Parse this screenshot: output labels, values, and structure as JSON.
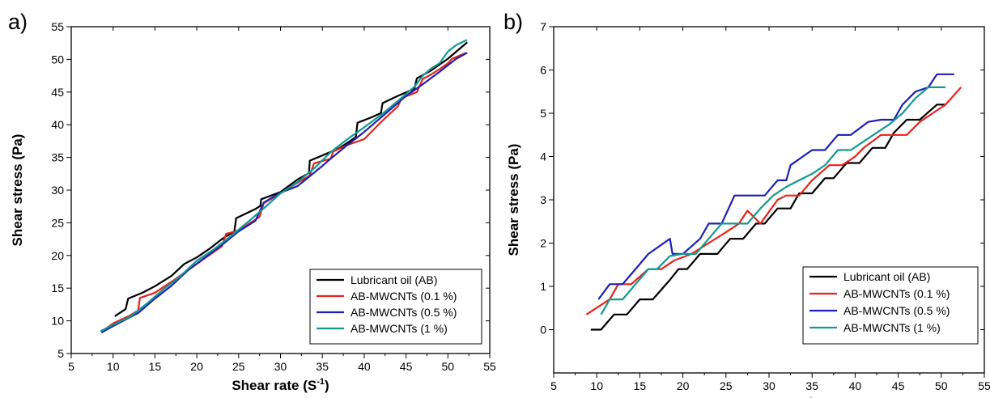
{
  "chart_data": [
    {
      "type": "line",
      "panel_label": "a)",
      "xlabel": "Shear rate",
      "xlabel_unit": "(S",
      "xlabel_unit_sup": "-1",
      "xlabel_unit_close": ")",
      "ylabel": "Shear stress (Pa)",
      "xlim": [
        5,
        55
      ],
      "ylim": [
        5,
        55
      ],
      "xticks": [
        "5",
        "10",
        "15",
        "20",
        "25",
        "30",
        "35",
        "40",
        "45",
        "50",
        "55"
      ],
      "yticks": [
        "5",
        "10",
        "15",
        "20",
        "25",
        "30",
        "35",
        "40",
        "45",
        "50",
        "55"
      ],
      "grid": false,
      "legend_position": "bottom-right",
      "series": [
        {
          "name": "Lubricant oil (AB)",
          "color": "#000000",
          "points": [
            [
              10.2,
              10.7
            ],
            [
              11.5,
              11.8
            ],
            [
              11.8,
              13.4
            ],
            [
              13.5,
              14.3
            ],
            [
              15,
              15.3
            ],
            [
              17,
              16.9
            ],
            [
              18.5,
              18.7
            ],
            [
              20,
              19.7
            ],
            [
              21.5,
              21
            ],
            [
              23,
              22.5
            ],
            [
              24.5,
              23.7
            ],
            [
              24.7,
              25.7
            ],
            [
              27,
              27.1
            ],
            [
              27.6,
              27.6
            ],
            [
              27.7,
              28.6
            ],
            [
              30,
              29.7
            ],
            [
              32,
              31.6
            ],
            [
              33.4,
              32.6
            ],
            [
              33.5,
              34.5
            ],
            [
              35,
              35.3
            ],
            [
              37,
              36.4
            ],
            [
              39,
              38.1
            ],
            [
              39.2,
              40.3
            ],
            [
              41,
              41.2
            ],
            [
              42,
              41.8
            ],
            [
              42.2,
              43.3
            ],
            [
              44,
              44.4
            ],
            [
              46,
              45.5
            ],
            [
              46.3,
              47.1
            ],
            [
              48,
              48.3
            ],
            [
              50,
              50.1
            ],
            [
              52.3,
              52.6
            ]
          ]
        },
        {
          "name": "AB-MWCNTs (0.1 %)",
          "color": "#e8221b",
          "points": [
            [
              8.7,
              8.4
            ],
            [
              10,
              9.6
            ],
            [
              12,
              10.8
            ],
            [
              13,
              11.6
            ],
            [
              13.2,
              13.5
            ],
            [
              15,
              14.3
            ],
            [
              17,
              16
            ],
            [
              19,
              17.8
            ],
            [
              21,
              19.6
            ],
            [
              23,
              21.4
            ],
            [
              23.5,
              23.3
            ],
            [
              25,
              23.8
            ],
            [
              27.5,
              25.9
            ],
            [
              28,
              28
            ],
            [
              30,
              29.5
            ],
            [
              32,
              31.1
            ],
            [
              33.5,
              32.2
            ],
            [
              34,
              34.1
            ],
            [
              36,
              34.8
            ],
            [
              36.3,
              35.9
            ],
            [
              38,
              36.9
            ],
            [
              40,
              37.8
            ],
            [
              42,
              40.4
            ],
            [
              44,
              42.8
            ],
            [
              44.5,
              44.1
            ],
            [
              46.3,
              45
            ],
            [
              47,
              47
            ],
            [
              48,
              47.7
            ],
            [
              49,
              48.5
            ],
            [
              50,
              49.4
            ],
            [
              50.5,
              50.1
            ],
            [
              52.2,
              51
            ]
          ]
        },
        {
          "name": "AB-MWCNTs (0.5 %)",
          "color": "#1f1fb4",
          "points": [
            [
              8.6,
              8.2
            ],
            [
              10,
              9.2
            ],
            [
              11.5,
              10.2
            ],
            [
              13,
              11.2
            ],
            [
              15,
              13.4
            ],
            [
              17,
              15.4
            ],
            [
              19,
              17.8
            ],
            [
              21,
              19.7
            ],
            [
              23,
              21.6
            ],
            [
              25,
              23.7
            ],
            [
              27,
              25.3
            ],
            [
              27.5,
              26.7
            ],
            [
              28,
              28.1
            ],
            [
              30,
              29.6
            ],
            [
              32,
              30.6
            ],
            [
              33,
              31.6
            ],
            [
              35,
              33.7
            ],
            [
              36,
              34.8
            ],
            [
              38,
              36.9
            ],
            [
              40,
              38.9
            ],
            [
              42,
              41.1
            ],
            [
              43,
              42.2
            ],
            [
              45,
              44.4
            ],
            [
              47,
              46.2
            ],
            [
              49,
              48.1
            ],
            [
              51,
              50.1
            ],
            [
              52.3,
              51
            ]
          ]
        },
        {
          "name": "AB-MWCNTs (1 %)",
          "color": "#119a92",
          "points": [
            [
              8.5,
              8.4
            ],
            [
              10,
              9.4
            ],
            [
              12,
              10.6
            ],
            [
              14,
              12.6
            ],
            [
              16,
              14.8
            ],
            [
              18,
              16.8
            ],
            [
              20,
              19.2
            ],
            [
              22,
              20.9
            ],
            [
              24,
              22.9
            ],
            [
              26,
              25
            ],
            [
              28,
              27.2
            ],
            [
              30,
              29.5
            ],
            [
              32,
              31.2
            ],
            [
              34,
              33.3
            ],
            [
              36,
              35.8
            ],
            [
              38,
              37.8
            ],
            [
              40,
              39.6
            ],
            [
              42,
              41.5
            ],
            [
              44,
              43.6
            ],
            [
              46,
              45.8
            ],
            [
              47,
              47.5
            ],
            [
              48,
              48.6
            ],
            [
              49,
              49.4
            ],
            [
              50,
              51.2
            ],
            [
              51,
              52.2
            ],
            [
              52.3,
              53
            ]
          ]
        }
      ]
    },
    {
      "type": "line",
      "panel_label": "b)",
      "xlabel": "Shear rate",
      "xlabel_unit": "(S",
      "xlabel_unit_sup": "-1",
      "xlabel_unit_close": ")",
      "ylabel": "Shear stress (Pa)",
      "xlim": [
        5,
        55
      ],
      "ylim": [
        -1,
        7
      ],
      "xticks": [
        "5",
        "10",
        "15",
        "20",
        "25",
        "30",
        "35",
        "40",
        "45",
        "50",
        "55"
      ],
      "yticks": [
        "0",
        "1",
        "2",
        "3",
        "4",
        "5",
        "6",
        "7"
      ],
      "grid": false,
      "legend_position": "bottom-right",
      "series": [
        {
          "name": "Lubricant oil (AB)",
          "color": "#000000",
          "points": [
            [
              9.3,
              0
            ],
            [
              10.5,
              0
            ],
            [
              12,
              0.35
            ],
            [
              13.5,
              0.35
            ],
            [
              15,
              0.7
            ],
            [
              16.5,
              0.7
            ],
            [
              18.5,
              1.15
            ],
            [
              19.5,
              1.4
            ],
            [
              20.5,
              1.4
            ],
            [
              22,
              1.75
            ],
            [
              24,
              1.75
            ],
            [
              25.5,
              2.1
            ],
            [
              27,
              2.1
            ],
            [
              28.5,
              2.45
            ],
            [
              29.5,
              2.45
            ],
            [
              31,
              2.8
            ],
            [
              32.5,
              2.8
            ],
            [
              33.5,
              3.15
            ],
            [
              35,
              3.15
            ],
            [
              36.5,
              3.5
            ],
            [
              37.5,
              3.5
            ],
            [
              39,
              3.85
            ],
            [
              40.5,
              3.85
            ],
            [
              42,
              4.2
            ],
            [
              43.5,
              4.2
            ],
            [
              44.5,
              4.55
            ],
            [
              46,
              4.85
            ],
            [
              47.5,
              4.85
            ],
            [
              49.5,
              5.2
            ],
            [
              50.5,
              5.2
            ]
          ]
        },
        {
          "name": "AB-MWCNTs (0.1 %)",
          "color": "#e8221b",
          "points": [
            [
              8.8,
              0.35
            ],
            [
              11.5,
              0.7
            ],
            [
              12.5,
              1.05
            ],
            [
              14,
              1.05
            ],
            [
              16,
              1.4
            ],
            [
              17.5,
              1.4
            ],
            [
              19,
              1.6
            ],
            [
              21,
              1.75
            ],
            [
              23,
              2
            ],
            [
              25,
              2.25
            ],
            [
              26.5,
              2.45
            ],
            [
              27.5,
              2.75
            ],
            [
              29,
              2.45
            ],
            [
              31,
              3
            ],
            [
              32,
              3.1
            ],
            [
              33.5,
              3.1
            ],
            [
              35,
              3.45
            ],
            [
              37,
              3.8
            ],
            [
              38.5,
              3.8
            ],
            [
              40,
              4
            ],
            [
              41,
              4.2
            ],
            [
              43,
              4.5
            ],
            [
              45,
              4.5
            ],
            [
              46,
              4.5
            ],
            [
              47.5,
              4.8
            ],
            [
              49,
              5
            ],
            [
              50.5,
              5.2
            ],
            [
              52.3,
              5.6
            ]
          ]
        },
        {
          "name": "AB-MWCNTs (0.5 %)",
          "color": "#1f1fb4",
          "points": [
            [
              10.2,
              0.7
            ],
            [
              11.5,
              1.05
            ],
            [
              13,
              1.05
            ],
            [
              14.5,
              1.4
            ],
            [
              16,
              1.75
            ],
            [
              18.5,
              2.1
            ],
            [
              18.8,
              1.75
            ],
            [
              20,
              1.75
            ],
            [
              22,
              2.1
            ],
            [
              23,
              2.45
            ],
            [
              24.5,
              2.45
            ],
            [
              26,
              3.1
            ],
            [
              28,
              3.1
            ],
            [
              29.5,
              3.1
            ],
            [
              31,
              3.45
            ],
            [
              32,
              3.45
            ],
            [
              32.5,
              3.8
            ],
            [
              35,
              4.15
            ],
            [
              36.5,
              4.15
            ],
            [
              38,
              4.5
            ],
            [
              39.5,
              4.5
            ],
            [
              41.5,
              4.8
            ],
            [
              43,
              4.85
            ],
            [
              44.5,
              4.85
            ],
            [
              45.5,
              5.2
            ],
            [
              47,
              5.5
            ],
            [
              48.5,
              5.6
            ],
            [
              49.5,
              5.9
            ],
            [
              51.5,
              5.9
            ]
          ]
        },
        {
          "name": "AB-MWCNTs (1 %)",
          "color": "#119a92",
          "points": [
            [
              10.5,
              0.35
            ],
            [
              11.5,
              0.7
            ],
            [
              13,
              0.7
            ],
            [
              14.5,
              1.05
            ],
            [
              16,
              1.4
            ],
            [
              17,
              1.4
            ],
            [
              18.5,
              1.7
            ],
            [
              20,
              1.75
            ],
            [
              21.5,
              1.75
            ],
            [
              23,
              2.1
            ],
            [
              24.5,
              2.45
            ],
            [
              26,
              2.45
            ],
            [
              27.5,
              2.45
            ],
            [
              29,
              2.8
            ],
            [
              30.5,
              3.1
            ],
            [
              32,
              3.3
            ],
            [
              33.5,
              3.45
            ],
            [
              35,
              3.6
            ],
            [
              36.5,
              3.8
            ],
            [
              38,
              4.15
            ],
            [
              39.5,
              4.15
            ],
            [
              41,
              4.35
            ],
            [
              42.5,
              4.55
            ],
            [
              44,
              4.75
            ],
            [
              45.5,
              5
            ],
            [
              47,
              5.35
            ],
            [
              48.5,
              5.6
            ],
            [
              50.5,
              5.6
            ]
          ]
        }
      ]
    }
  ]
}
